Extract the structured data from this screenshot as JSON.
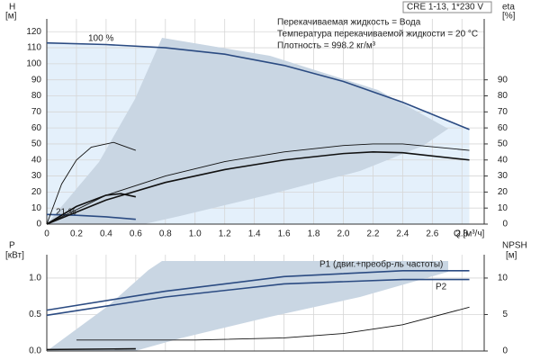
{
  "chart_data": [
    {
      "type": "line",
      "title": "CRE 1-13, 1*230 V",
      "info": [
        "Перекачиваемая жидкость = Вода",
        "Температура перекачиваемой жидкости = 20 °C",
        "Плотность = 998.2 кг/м³"
      ],
      "ylabel": "H",
      "yunit": "[м]",
      "y2label": "eta",
      "y2unit": "[%]",
      "xlabel": "Q [м³/ч]",
      "annotations": [
        "100 %",
        "21 %"
      ],
      "xlim": [
        0,
        2.95
      ],
      "xticks": [
        0,
        0.2,
        0.4,
        0.6,
        0.8,
        {
          "value": 1,
          "label": "1.0"
        },
        1.2,
        1.4,
        1.6,
        1.8,
        {
          "value": 2,
          "label": "2.0"
        },
        2.2,
        2.4,
        2.6,
        2.8
      ],
      "ylim": [
        0,
        128
      ],
      "yticks": [
        0,
        10,
        20,
        30,
        40,
        50,
        60,
        70,
        80,
        90,
        100,
        110,
        120
      ],
      "y2lim": [
        0,
        128
      ],
      "y2ticks": [
        0,
        10,
        20,
        30,
        40,
        50,
        60,
        70,
        80,
        90
      ],
      "grid": true,
      "series": [
        {
          "color": "#2b4b82",
          "fill": "#e4f0fb",
          "x": [
            0,
            0.4,
            0.8,
            1.2,
            1.6,
            2.0,
            2.4,
            2.85
          ],
          "values": [
            113,
            112,
            110,
            106,
            99,
            89,
            76,
            59
          ]
        },
        {
          "color": "#2b4b82",
          "x": [
            0,
            0.2,
            0.4,
            0.6
          ],
          "values": [
            6,
            5.5,
            4.5,
            3
          ]
        },
        {
          "color": "#111111",
          "axis": "y2",
          "x": [
            0,
            0.4,
            0.8,
            1.2,
            1.6,
            2.0,
            2.2,
            2.4,
            2.85
          ],
          "values": [
            0,
            18,
            30,
            39,
            45,
            49,
            50,
            50,
            46
          ]
        },
        {
          "color": "#111111",
          "axis": "y2",
          "x": [
            0,
            0.4,
            0.8,
            1.2,
            1.6,
            2.0,
            2.2,
            2.4,
            2.85
          ],
          "values": [
            0,
            15,
            26,
            34,
            40,
            44,
            45,
            44.5,
            40
          ]
        },
        {
          "color": "#111111",
          "axis": "y2",
          "x": [
            0,
            0.1,
            0.2,
            0.3,
            0.45,
            0.6
          ],
          "values": [
            0,
            25,
            40,
            48,
            51,
            46
          ]
        },
        {
          "color": "#111111",
          "axis": "y2",
          "x": [
            0,
            0.2,
            0.4,
            0.5,
            0.6
          ],
          "values": [
            0,
            11,
            18,
            19,
            17
          ]
        }
      ]
    },
    {
      "type": "line",
      "ylabel": "P",
      "yunit": "[кВт]",
      "y2label": "NPSH",
      "y2unit": "[м]",
      "annotations": [
        "P1 (двиг.+преобр-ль частоты)",
        "P2"
      ],
      "xlim": [
        0,
        2.95
      ],
      "xticks": [
        0,
        0.2,
        0.4,
        0.6,
        0.8,
        1,
        1.2,
        1.4,
        1.6,
        1.8,
        2,
        2.2,
        2.4,
        2.6,
        2.8
      ],
      "ylim": [
        0,
        1.32
      ],
      "yticks": [
        {
          "value": 0,
          "label": "0.0"
        },
        0.5,
        {
          "value": 1,
          "label": "1.0"
        }
      ],
      "y2lim": [
        0,
        13.2
      ],
      "y2ticks": [
        0,
        5,
        10
      ],
      "grid": true,
      "series": [
        {
          "color": "#2b4b82",
          "x": [
            0,
            0.8,
            1.6,
            2.4,
            2.85
          ],
          "values": [
            0.56,
            0.82,
            1.02,
            1.1,
            1.1
          ]
        },
        {
          "color": "#2b4b82",
          "x": [
            0,
            0.8,
            1.6,
            2.4,
            2.85
          ],
          "values": [
            0.49,
            0.74,
            0.92,
            0.98,
            0.98
          ]
        },
        {
          "color": "#111111",
          "axis": "y2",
          "x": [
            0.2,
            1.0,
            1.6,
            2.0,
            2.4,
            2.85
          ],
          "values": [
            1.5,
            1.5,
            1.8,
            2.4,
            3.6,
            6
          ]
        },
        {
          "color": "#111111",
          "x": [
            0,
            0.6
          ],
          "values": [
            0.02,
            0.03
          ]
        }
      ]
    }
  ]
}
